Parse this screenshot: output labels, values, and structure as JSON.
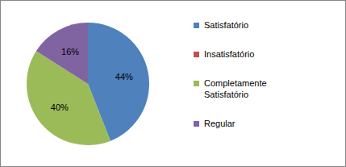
{
  "chart_data": {
    "type": "pie",
    "categories": [
      "Satisfatório",
      "Insatisfatório",
      "Completamente Satisfatório",
      "Regular"
    ],
    "values": [
      44,
      0,
      40,
      16
    ],
    "value_labels": [
      "44%",
      null,
      "40%",
      "16%"
    ],
    "colors": [
      "#4f81bd",
      "#c0504d",
      "#9bbb59",
      "#8064a2"
    ],
    "data_labels": true,
    "legend": "right"
  }
}
